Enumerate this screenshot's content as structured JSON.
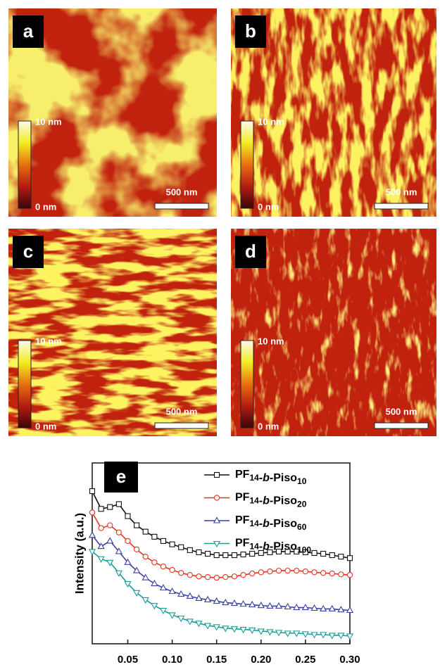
{
  "panels": [
    {
      "label": "a",
      "colorbar_max": "10 nm",
      "colorbar_min": "0 nm",
      "scale_bar": "500 nm"
    },
    {
      "label": "b",
      "colorbar_max": "10 nm",
      "colorbar_min": "0 nm",
      "scale_bar": "500 nm"
    },
    {
      "label": "c",
      "colorbar_max": "10 nm",
      "colorbar_min": "0 nm",
      "scale_bar": "500 nm"
    },
    {
      "label": "d",
      "colorbar_max": "10 nm",
      "colorbar_min": "0 nm",
      "scale_bar": "500 nm"
    }
  ],
  "chart_data": {
    "type": "line",
    "panel_label": "e",
    "y_label": "Intensity (a.u.)",
    "log_scale": true,
    "x": [
      0.01,
      0.02,
      0.03,
      0.04,
      0.05,
      0.06,
      0.07,
      0.08,
      0.09,
      0.1,
      0.11,
      0.12,
      0.13,
      0.14,
      0.15,
      0.16,
      0.17,
      0.18,
      0.19,
      0.2,
      0.21,
      0.22,
      0.23,
      0.24,
      0.25,
      0.26,
      0.27,
      0.28,
      0.29,
      0.3
    ],
    "xlim": [
      0.01,
      0.3
    ],
    "xticks": [
      0.05,
      {
        "value": 0.1,
        "label": "0.10"
      },
      0.15,
      {
        "value": 0.2,
        "label": "0.20"
      },
      0.25,
      {
        "value": 0.3,
        "label": "0.30"
      }
    ],
    "ylim": [
      1,
      100000
    ],
    "series": [
      {
        "name": "PF14-b-Piso10",
        "color": "#111111",
        "marker": "square",
        "values": [
          16600,
          5370,
          6040,
          7280,
          3390,
          1890,
          1260,
          912,
          695,
          562,
          468,
          389,
          339,
          309,
          282,
          282,
          282,
          295,
          309,
          324,
          339,
          355,
          355,
          355,
          339,
          324,
          309,
          282,
          257,
          234
        ]
      },
      {
        "name": "PF14-b-Piso20",
        "color": "#e8321f",
        "marker": "circle",
        "values": [
          4270,
          1580,
          1890,
          1200,
          695,
          407,
          257,
          178,
          137,
          110,
          91,
          80,
          73,
          70,
          67,
          70,
          73,
          80,
          88,
          95,
          100,
          105,
          105,
          105,
          100,
          95,
          91,
          88,
          83,
          80
        ]
      },
      {
        "name": "PF14-b-Piso60",
        "color": "#3a3fa6",
        "marker": "triangle-up",
        "values": [
          1000,
          490,
          695,
          355,
          178,
          105,
          67,
          46,
          35,
          28,
          23.5,
          20.6,
          18,
          16.5,
          15,
          13.7,
          13.1,
          12.5,
          12,
          11.4,
          11,
          11,
          10.5,
          10,
          10,
          9.6,
          9.2,
          9.2,
          8.7,
          8.4
        ]
      },
      {
        "name": "PF14-b-Piso100",
        "color": "#1a9c9a",
        "marker": "triangle-down",
        "values": [
          355,
          224,
          178,
          91,
          46,
          25.9,
          16.5,
          11.4,
          8.4,
          6.3,
          5.1,
          4.2,
          3.7,
          3.2,
          2.95,
          2.7,
          2.6,
          2.5,
          2.4,
          2.25,
          2.15,
          2.06,
          1.97,
          1.97,
          1.88,
          1.8,
          1.8,
          1.72,
          1.72,
          1.64
        ]
      }
    ]
  }
}
